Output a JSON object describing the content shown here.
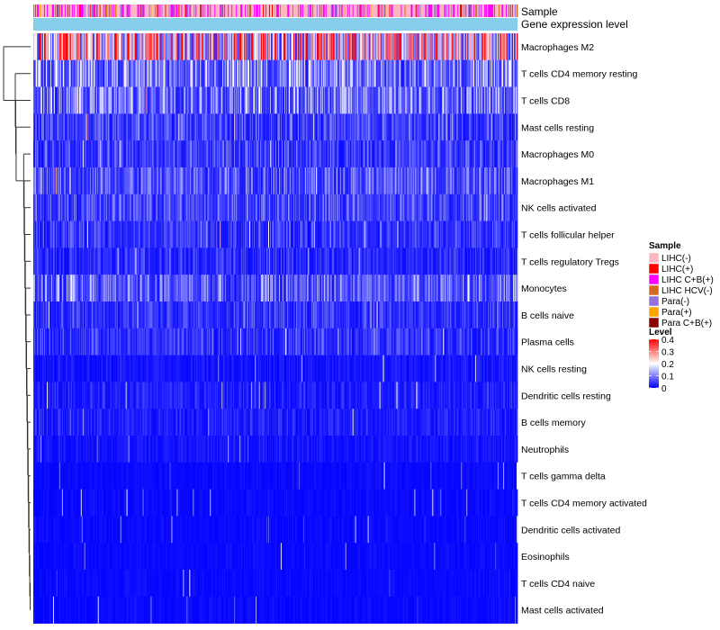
{
  "chart_data": {
    "type": "heatmap",
    "annotation_tracks": [
      "Sample",
      "Gene expression level"
    ],
    "rows": [
      "Macrophages M2",
      "T cells CD4 memory resting",
      "T cells CD8",
      "Mast cells resting",
      "Macrophages M0",
      "Macrophages M1",
      "NK cells activated",
      "T cells follicular helper",
      "T cells regulatory  Tregs",
      "Monocytes",
      "B cells naive",
      "Plasma cells",
      "NK cells resting",
      "Dendritic cells resting",
      "B cells memory",
      "Neutrophils",
      "T cells gamma delta",
      "T cells CD4 memory activated",
      "Dendritic cells activated",
      "Eosinophils",
      "T cells CD4 naive",
      "Mast cells activated"
    ],
    "row_mean_level": [
      0.27,
      0.12,
      0.11,
      0.06,
      0.06,
      0.08,
      0.07,
      0.05,
      0.04,
      0.09,
      0.05,
      0.05,
      0.02,
      0.03,
      0.03,
      0.02,
      0.01,
      0.01,
      0.01,
      0.01,
      0.01,
      0.01
    ],
    "n_samples": 540,
    "color_scale": {
      "title": "Level",
      "min": 0,
      "max": 0.4,
      "ticks": [
        "0.4",
        "0.3",
        "0.2",
        "0.1",
        "0"
      ],
      "tick_values": [
        0.4,
        0.3,
        0.2,
        0.1,
        0
      ],
      "stops": [
        {
          "value": 0.0,
          "color": "#0000ff"
        },
        {
          "value": 0.2,
          "color": "#ffffff"
        },
        {
          "value": 0.4,
          "color": "#ff0000"
        }
      ]
    },
    "legend": {
      "title": "Sample",
      "position": "right",
      "entries": [
        {
          "label": "LIHC(-)",
          "color": "#ffb6c1"
        },
        {
          "label": "LIHC(+)",
          "color": "#ff0000"
        },
        {
          "label": "LIHC C+B(+)",
          "color": "#ff00ff"
        },
        {
          "label": "LIHC HCV(-)",
          "color": "#d2691e"
        },
        {
          "label": "Para(-)",
          "color": "#9370db"
        },
        {
          "label": "Para(+)",
          "color": "#ffa500"
        },
        {
          "label": "Para C+B(+)",
          "color": "#8b0000"
        }
      ]
    },
    "expression_track_color": "#87ceeb",
    "sample_mix": [
      {
        "label": "LIHC(-)",
        "weight": 0.55
      },
      {
        "label": "LIHC C+B(+)",
        "weight": 0.25
      },
      {
        "label": "Para(-)",
        "weight": 0.1
      },
      {
        "label": "LIHC(+)",
        "weight": 0.04
      },
      {
        "label": "LIHC HCV(-)",
        "weight": 0.03
      },
      {
        "label": "Para(+)",
        "weight": 0.02
      },
      {
        "label": "Para C+B(+)",
        "weight": 0.01
      }
    ]
  }
}
